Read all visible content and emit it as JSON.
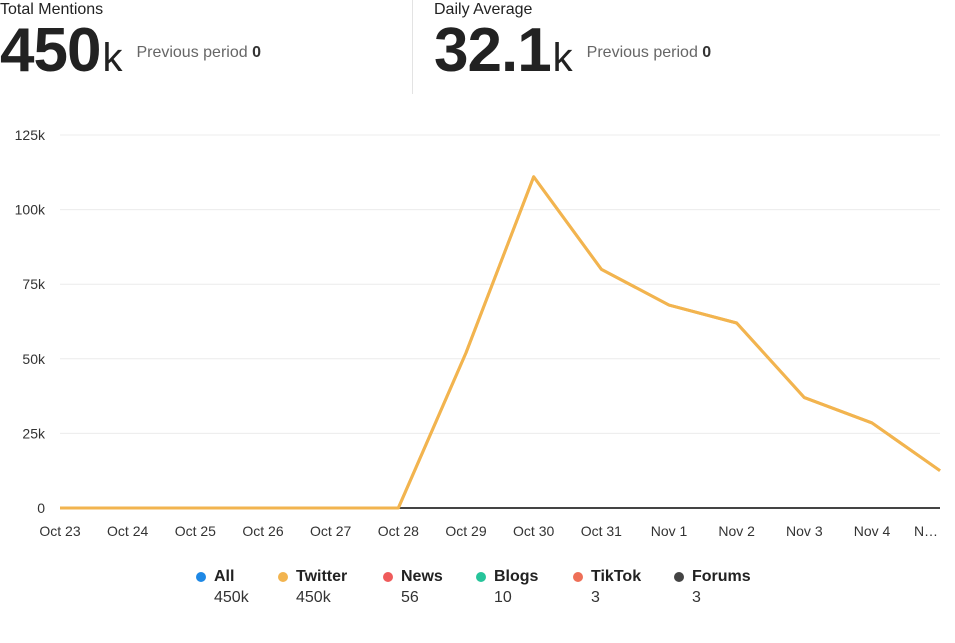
{
  "kpis": [
    {
      "title": "Total Mentions",
      "value": "450",
      "unit": "k",
      "prev_label": "Previous period",
      "prev_value": "0"
    },
    {
      "title": "Daily Average",
      "value": "32.1",
      "unit": "k",
      "prev_label": "Previous period",
      "prev_value": "0"
    }
  ],
  "chart_data": {
    "type": "line",
    "title": "",
    "xlabel": "",
    "ylabel": "",
    "categories": [
      "Oct 23",
      "Oct 24",
      "Oct 25",
      "Oct 26",
      "Oct 27",
      "Oct 28",
      "Oct 29",
      "Oct 30",
      "Oct 31",
      "Nov 1",
      "Nov 2",
      "Nov 3",
      "Nov 4",
      "N…"
    ],
    "ylim": [
      0,
      125000
    ],
    "yticks": [
      0,
      25000,
      50000,
      75000,
      100000,
      125000
    ],
    "ytick_labels": [
      "0",
      "25k",
      "50k",
      "75k",
      "100k",
      "125k"
    ],
    "grid": true,
    "legend_position": "bottom",
    "series": [
      {
        "name": "Twitter",
        "color": "#f2b44f",
        "values": [
          0,
          0,
          0,
          0,
          0,
          0,
          52000,
          111000,
          80000,
          68000,
          62000,
          37000,
          28500,
          12500
        ]
      },
      {
        "name": "Forums",
        "color": "#444444",
        "values": [
          0,
          0,
          0,
          0,
          0,
          0,
          0,
          0,
          0,
          0,
          0,
          0,
          0,
          0
        ]
      }
    ]
  },
  "legend": [
    {
      "name": "All",
      "value": "450k",
      "color": "#1e88e5"
    },
    {
      "name": "Twitter",
      "value": "450k",
      "color": "#f2b44f"
    },
    {
      "name": "News",
      "value": "56",
      "color": "#ef5b5b"
    },
    {
      "name": "Blogs",
      "value": "10",
      "color": "#26c49a"
    },
    {
      "name": "TikTok",
      "value": "3",
      "color": "#ee6f57"
    },
    {
      "name": "Forums",
      "value": "3",
      "color": "#444444"
    }
  ]
}
